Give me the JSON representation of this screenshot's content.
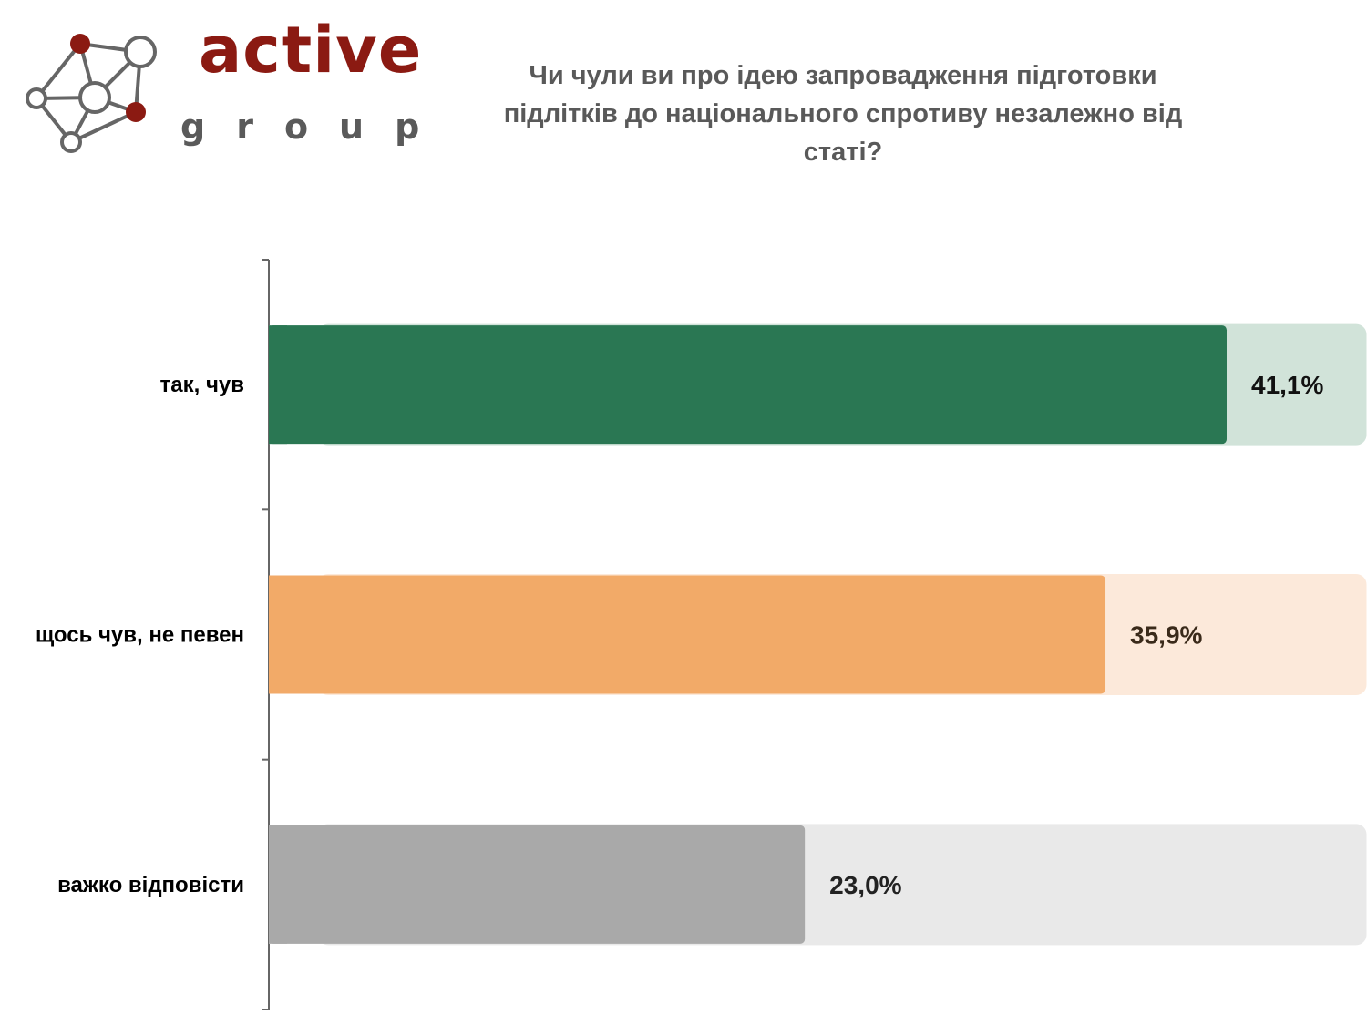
{
  "logo": {
    "word1": "active",
    "word2": "group",
    "brand_color": "#8b1a12",
    "text_color": "#5a5a5a",
    "icon_dark": "#8b1a12",
    "icon_line": "#666666"
  },
  "chart_data": {
    "type": "bar",
    "orientation": "horizontal",
    "title": "Чи чули ви про ідею запровадження підготовки підлітків до національного спротиву незалежно від статі?",
    "categories": [
      "так, чув",
      "щось чув, не певен",
      "важко відповісти"
    ],
    "values": [
      41.1,
      35.9,
      23.0
    ],
    "value_labels": [
      "41,1%",
      "35,9%",
      "23,0%"
    ],
    "unit": "%",
    "xlim": [
      0,
      47
    ],
    "colors": [
      "#2a7753",
      "#f2aa68",
      "#a9a9a9"
    ],
    "track_colors": [
      "#d1e3d9",
      "#fce9da",
      "#e9e9e9"
    ],
    "value_label_colors": [
      "#111111",
      "#3a2a1a",
      "#222222"
    ],
    "grid": false,
    "legend": "none"
  },
  "colors": {
    "title": "#595959",
    "category_label": "#000000",
    "axis": "#666666"
  }
}
